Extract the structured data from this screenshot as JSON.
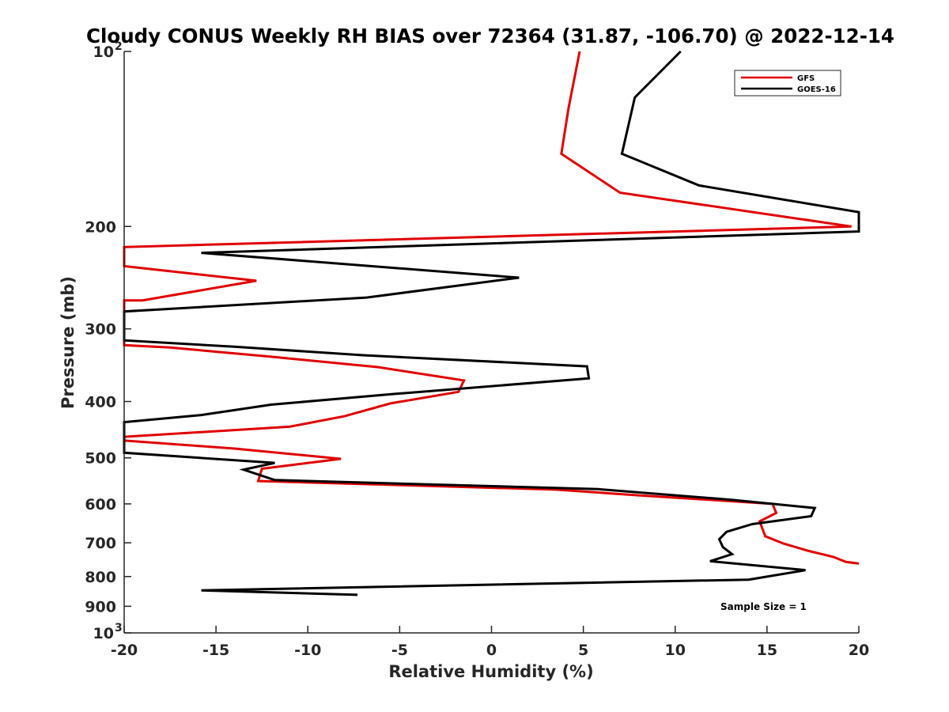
{
  "chart_data": {
    "type": "line",
    "title": "Cloudy CONUS Weekly RH BIAS over 72364 (31.87, -106.70) @ 2022-12-14",
    "xlabel": "Relative Humidity (%)",
    "ylabel": "Pressure (mb)",
    "xlim": [
      -20,
      20
    ],
    "ylim": [
      1000,
      100
    ],
    "y_scale": "log",
    "y_reversed": true,
    "x_ticks": [
      "-20",
      "-15",
      "-10",
      "-5",
      "0",
      "5",
      "10",
      "15",
      "20"
    ],
    "y_ticks": [
      {
        "base": "10",
        "exp": "2",
        "value": 100
      },
      {
        "base": "200",
        "exp": "",
        "value": 200
      },
      {
        "base": "300",
        "exp": "",
        "value": 300
      },
      {
        "base": "400",
        "exp": "",
        "value": 400
      },
      {
        "base": "500",
        "exp": "",
        "value": 500
      },
      {
        "base": "600",
        "exp": "",
        "value": 600
      },
      {
        "base": "700",
        "exp": "",
        "value": 700
      },
      {
        "base": "800",
        "exp": "",
        "value": 800
      },
      {
        "base": "900",
        "exp": "",
        "value": 900
      },
      {
        "base": "10",
        "exp": "3",
        "value": 1000
      }
    ],
    "grid": false,
    "legend_position": "top-right",
    "annotation": "Sample Size = 1",
    "series": [
      {
        "name": "GFS",
        "color": "#e00000",
        "points": [
          [
            4.8,
            100
          ],
          [
            4.2,
            125
          ],
          [
            3.8,
            150
          ],
          [
            7.0,
            175
          ],
          [
            19.6,
            200
          ],
          [
            -20.0,
            217
          ],
          [
            -20.0,
            234
          ],
          [
            -12.8,
            248
          ],
          [
            -19.0,
            268
          ],
          [
            -20.0,
            268
          ],
          [
            -20.0,
            320
          ],
          [
            -17.5,
            323
          ],
          [
            -12.0,
            335
          ],
          [
            -6.2,
            349
          ],
          [
            -1.5,
            368
          ],
          [
            -1.8,
            385
          ],
          [
            -5.5,
            403
          ],
          [
            -8.0,
            424
          ],
          [
            -11.0,
            442
          ],
          [
            -20.0,
            460
          ],
          [
            -20.0,
            467
          ],
          [
            -14.0,
            482
          ],
          [
            -8.2,
            502
          ],
          [
            -12.5,
            522
          ],
          [
            -12.7,
            548
          ],
          [
            3.5,
            567
          ],
          [
            8.0,
            580
          ],
          [
            15.3,
            600
          ],
          [
            15.5,
            622
          ],
          [
            14.6,
            643
          ],
          [
            14.9,
            682
          ],
          [
            15.9,
            702
          ],
          [
            17.2,
            722
          ],
          [
            18.6,
            740
          ],
          [
            19.3,
            755
          ],
          [
            20.0,
            760
          ]
        ]
      },
      {
        "name": "GOES-16",
        "color": "#000000",
        "points": [
          [
            10.3,
            100
          ],
          [
            7.8,
            120
          ],
          [
            7.1,
            150
          ],
          [
            11.3,
            170
          ],
          [
            20.0,
            189
          ],
          [
            20.0,
            204
          ],
          [
            -15.8,
            222
          ],
          [
            1.5,
            245
          ],
          [
            -6.8,
            265
          ],
          [
            -20.0,
            280
          ],
          [
            -20.0,
            314
          ],
          [
            -14.0,
            322
          ],
          [
            -7.0,
            333
          ],
          [
            5.2,
            348
          ],
          [
            5.3,
            365
          ],
          [
            -5.2,
            388
          ],
          [
            -12.0,
            405
          ],
          [
            -15.8,
            422
          ],
          [
            -20.0,
            434
          ],
          [
            -20.0,
            490
          ],
          [
            -11.8,
            510
          ],
          [
            -13.5,
            524
          ],
          [
            -11.8,
            546
          ],
          [
            5.8,
            566
          ],
          [
            13.0,
            590
          ],
          [
            17.6,
            610
          ],
          [
            17.4,
            630
          ],
          [
            14.2,
            650
          ],
          [
            12.8,
            670
          ],
          [
            12.4,
            690
          ],
          [
            12.6,
            712
          ],
          [
            13.1,
            732
          ],
          [
            11.9,
            753
          ],
          [
            17.1,
            780
          ],
          [
            14.0,
            810
          ],
          [
            -15.8,
            845
          ],
          [
            -7.3,
            860
          ]
        ]
      }
    ]
  }
}
